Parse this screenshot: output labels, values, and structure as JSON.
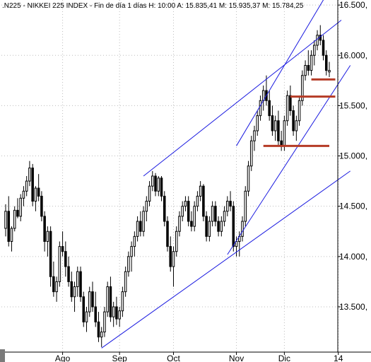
{
  "header": {
    "ticker": ".N225",
    "name": "NIKKEI 225 INDEX",
    "timeframe": "Fin de día 1 días",
    "hour_label": "H:",
    "hour_value": "10:00",
    "open_label": "A:",
    "open_value": "15.835,41",
    "high_label": "M:",
    "high_value": "15.935,37",
    "low_label": "M:",
    "low_value": "15.784,25"
  },
  "chart_data": {
    "type": "candlestick",
    "title": ".N225 - NIKKEI 225 INDEX - Fin de día 1 días",
    "xlabel": "",
    "ylabel": "",
    "ylim": [
      13050,
      16550
    ],
    "grid": true,
    "yticks": [
      {
        "value": 16500,
        "label": "16.500,"
      },
      {
        "value": 16000,
        "label": "16.000,"
      },
      {
        "value": 15500,
        "label": "15.500,"
      },
      {
        "value": 15000,
        "label": "15.000,"
      },
      {
        "value": 14500,
        "label": "14.500,"
      },
      {
        "value": 14000,
        "label": "14.000,"
      },
      {
        "value": 13500,
        "label": "13.500,"
      }
    ],
    "xticks": [
      {
        "index": 19,
        "label": "Ago"
      },
      {
        "index": 38,
        "label": "Sep"
      },
      {
        "index": 56,
        "label": "Oct"
      },
      {
        "index": 77,
        "label": "Nov"
      },
      {
        "index": 93,
        "label": "Dic"
      },
      {
        "index": 111,
        "label": "14"
      }
    ],
    "candles": [
      [
        14280,
        14520,
        14200,
        14450
      ],
      [
        14450,
        14600,
        14100,
        14150
      ],
      [
        14150,
        14300,
        14050,
        14280
      ],
      [
        14280,
        14500,
        14250,
        14460
      ],
      [
        14460,
        14580,
        14380,
        14400
      ],
      [
        14400,
        14620,
        14350,
        14580
      ],
      [
        14580,
        14700,
        14500,
        14650
      ],
      [
        14650,
        14800,
        14600,
        14750
      ],
      [
        14750,
        14950,
        14700,
        14880
      ],
      [
        14880,
        14920,
        14500,
        14550
      ],
      [
        14550,
        14700,
        14450,
        14680
      ],
      [
        14680,
        14820,
        14550,
        14600
      ],
      [
        14600,
        14650,
        14350,
        14400
      ],
      [
        14400,
        14450,
        14050,
        14150
      ],
      [
        14150,
        14300,
        14000,
        14250
      ],
      [
        14250,
        14300,
        13700,
        13800
      ],
      [
        13800,
        13950,
        13600,
        13650
      ],
      [
        13650,
        13800,
        13550,
        13750
      ],
      [
        13750,
        14150,
        13700,
        14100
      ],
      [
        14100,
        14250,
        14000,
        14050
      ],
      [
        14050,
        14150,
        13800,
        13900
      ],
      [
        13900,
        14000,
        13700,
        13750
      ],
      [
        13750,
        13850,
        13550,
        13600
      ],
      [
        13600,
        13750,
        13450,
        13700
      ],
      [
        13700,
        13900,
        13600,
        13850
      ],
      [
        13850,
        13900,
        13550,
        13600
      ],
      [
        13600,
        13650,
        13300,
        13350
      ],
      [
        13350,
        13500,
        13250,
        13450
      ],
      [
        13450,
        13700,
        13400,
        13650
      ],
      [
        13650,
        13750,
        13450,
        13500
      ],
      [
        13500,
        13650,
        13300,
        13350
      ],
      [
        13350,
        13450,
        13150,
        13200
      ],
      [
        13200,
        13300,
        13100,
        13250
      ],
      [
        13250,
        13500,
        13200,
        13450
      ],
      [
        13450,
        13750,
        13400,
        13700
      ],
      [
        13700,
        13800,
        13350,
        13400
      ],
      [
        13400,
        13550,
        13300,
        13500
      ],
      [
        13500,
        13600,
        13320,
        13380
      ],
      [
        13380,
        13500,
        13300,
        13460
      ],
      [
        13460,
        13700,
        13400,
        13650
      ],
      [
        13650,
        13900,
        13600,
        13850
      ],
      [
        13850,
        14050,
        13800,
        14000
      ],
      [
        14000,
        14150,
        13850,
        14100
      ],
      [
        14100,
        14250,
        14000,
        14200
      ],
      [
        14200,
        14400,
        14150,
        14350
      ],
      [
        14350,
        14450,
        14200,
        14250
      ],
      [
        14250,
        14500,
        14200,
        14450
      ],
      [
        14450,
        14600,
        14350,
        14550
      ],
      [
        14550,
        14750,
        14500,
        14700
      ],
      [
        14700,
        14850,
        14650,
        14800
      ],
      [
        14800,
        14830,
        14600,
        14650
      ],
      [
        14650,
        14800,
        14600,
        14780
      ],
      [
        14780,
        14800,
        14550,
        14600
      ],
      [
        14600,
        14650,
        14300,
        14350
      ],
      [
        14350,
        14400,
        14050,
        14100
      ],
      [
        14100,
        14200,
        13850,
        13900
      ],
      [
        13900,
        14100,
        13700,
        14050
      ],
      [
        14050,
        14300,
        14000,
        14250
      ],
      [
        14250,
        14450,
        14200,
        14400
      ],
      [
        14400,
        14550,
        14350,
        14500
      ],
      [
        14500,
        14600,
        14450,
        14550
      ],
      [
        14550,
        14600,
        14300,
        14350
      ],
      [
        14350,
        14450,
        14250,
        14300
      ],
      [
        14300,
        14550,
        14250,
        14500
      ],
      [
        14500,
        14650,
        14450,
        14600
      ],
      [
        14600,
        14750,
        14550,
        14700
      ],
      [
        14700,
        14720,
        14350,
        14400
      ],
      [
        14400,
        14450,
        14150,
        14200
      ],
      [
        14200,
        14400,
        14150,
        14350
      ],
      [
        14350,
        14550,
        14300,
        14500
      ],
      [
        14500,
        14550,
        14300,
        14350
      ],
      [
        14350,
        14400,
        14200,
        14250
      ],
      [
        14250,
        14400,
        14200,
        14350
      ],
      [
        14350,
        14500,
        14300,
        14450
      ],
      [
        14450,
        14600,
        14400,
        14550
      ],
      [
        14550,
        14650,
        14450,
        14500
      ],
      [
        14500,
        14550,
        14050,
        14100
      ],
      [
        14100,
        14200,
        14000,
        14150
      ],
      [
        14150,
        14250,
        14000,
        14200
      ],
      [
        14200,
        14400,
        14150,
        14350
      ],
      [
        14350,
        14700,
        14300,
        14650
      ],
      [
        14650,
        14950,
        14600,
        14900
      ],
      [
        14900,
        15200,
        14850,
        15150
      ],
      [
        15150,
        15300,
        15050,
        15250
      ],
      [
        15250,
        15450,
        15200,
        15400
      ],
      [
        15400,
        15600,
        15350,
        15550
      ],
      [
        15550,
        15700,
        15450,
        15650
      ],
      [
        15650,
        15800,
        15500,
        15550
      ],
      [
        15550,
        15650,
        15350,
        15400
      ],
      [
        15400,
        15500,
        15200,
        15250
      ],
      [
        15250,
        15400,
        15150,
        15350
      ],
      [
        15350,
        15450,
        15100,
        15150
      ],
      [
        15150,
        15250,
        15050,
        15100
      ],
      [
        15100,
        15400,
        15050,
        15350
      ],
      [
        15350,
        15650,
        15300,
        15600
      ],
      [
        15600,
        15700,
        15400,
        15450
      ],
      [
        15450,
        15500,
        15200,
        15250
      ],
      [
        15250,
        15400,
        15150,
        15350
      ],
      [
        15350,
        15600,
        15300,
        15550
      ],
      [
        15550,
        15850,
        15500,
        15800
      ],
      [
        15800,
        15950,
        15750,
        15900
      ],
      [
        15900,
        16050,
        15800,
        15850
      ],
      [
        15850,
        16050,
        15800,
        16000
      ],
      [
        16000,
        16150,
        15900,
        16100
      ],
      [
        16100,
        16250,
        16050,
        16200
      ],
      [
        16200,
        16300,
        16100,
        16150
      ],
      [
        16150,
        16200,
        15950,
        16000
      ],
      [
        16000,
        16050,
        15800,
        15850
      ],
      [
        15835,
        15935,
        15784,
        15850
      ]
    ],
    "trendlines": [
      {
        "from": [
          32,
          13090
        ],
        "to": [
          115,
          14850
        ]
      },
      {
        "from": [
          46,
          14800
        ],
        "to": [
          112,
          16350
        ]
      },
      {
        "from": [
          74,
          14020
        ],
        "to": [
          115,
          15900
        ]
      },
      {
        "from": [
          77,
          15100
        ],
        "to": [
          107,
          16600
        ]
      }
    ],
    "levels": [
      {
        "value": 15100,
        "from": 86,
        "to": 108
      },
      {
        "value": 15590,
        "from": 95,
        "to": 110
      },
      {
        "value": 15760,
        "from": 102,
        "to": 110
      }
    ]
  }
}
